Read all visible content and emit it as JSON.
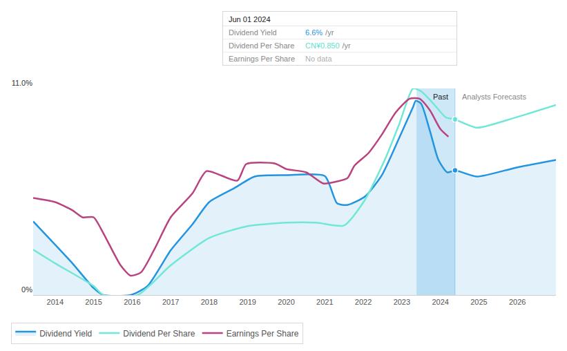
{
  "chart_data": {
    "type": "line",
    "xlim": [
      2013.43,
      2027.0
    ],
    "xticks": [
      2014,
      2015,
      2016,
      2017,
      2018,
      2019,
      2020,
      2021,
      2022,
      2023,
      2024,
      2025,
      2026
    ],
    "ylim": [
      0,
      11
    ],
    "yticks": [
      {
        "value": 0,
        "label": "0%"
      },
      {
        "value": 11,
        "label": "11.0%"
      }
    ],
    "grid": true,
    "legend": "bottom left",
    "highlight_start": 2023.38,
    "forecast_start": 2024.38,
    "annotations": [
      "Past",
      "Analysts Forecasts"
    ],
    "tooltip": {
      "date": "Jun 01 2024",
      "rows": [
        {
          "name": "Dividend Yield",
          "value": "6.6%",
          "unit": "/yr",
          "color": "#2394df"
        },
        {
          "name": "Dividend Per Share",
          "value": "CN¥0.850",
          "unit": "/yr",
          "color": "#5fe0cc"
        },
        {
          "name": "Earnings Per Share",
          "value": "No data",
          "color": "#b0b0b0"
        }
      ]
    },
    "series": [
      {
        "name": "Dividend Yield",
        "color": "#2394df",
        "type": "area",
        "x": [
          2013.43,
          2014,
          2014.45,
          2015,
          2015.25,
          2015.96,
          2016.4,
          2017,
          2017.57,
          2018,
          2018.64,
          2019.18,
          2020,
          2021,
          2021.32,
          2021.59,
          2022.04,
          2022.48,
          2022.93,
          2023.29,
          2023.36,
          2023.5,
          2023.73,
          2023.95,
          2024.18,
          2024.38,
          2024.95,
          2025.96,
          2027.0
        ],
        "values": [
          3.92,
          2.68,
          1.69,
          0.37,
          0,
          0,
          0.48,
          2.38,
          3.78,
          4.95,
          5.68,
          6.31,
          6.38,
          6.34,
          4.88,
          4.8,
          5.24,
          6.38,
          8.36,
          10.01,
          10.34,
          10.19,
          8.73,
          7.19,
          6.53,
          6.64,
          6.31,
          6.78,
          7.19
        ]
      },
      {
        "name": "Dividend Per Share",
        "color": "#71e7d6",
        "type": "line",
        "x": [
          2013.43,
          2014,
          2015,
          2015.25,
          2016.14,
          2017,
          2018,
          2019,
          2020,
          2020.79,
          2021.5,
          2022.04,
          2022.57,
          2022.93,
          2023.29,
          2023.5,
          2023.82,
          2024.14,
          2024.38,
          2024.95,
          2025.96,
          2027.0
        ],
        "values": [
          2.42,
          1.69,
          0.48,
          0,
          0,
          1.58,
          3.04,
          3.67,
          3.85,
          3.85,
          3.7,
          5.06,
          7.26,
          9.09,
          11.0,
          10.85,
          10.19,
          9.46,
          9.35,
          8.91,
          9.46,
          10.12
        ]
      },
      {
        "name": "Earnings Per Share",
        "color": "#b8437f",
        "type": "line",
        "x": [
          2013.43,
          2014,
          2014.45,
          2014.71,
          2015,
          2015.25,
          2015.7,
          2015.96,
          2016.23,
          2016.59,
          2017,
          2017.57,
          2017.93,
          2018.73,
          2018.96,
          2019.71,
          2020,
          2020.52,
          2020.96,
          2021.32,
          2021.59,
          2021.77,
          2022.13,
          2022.48,
          2022.84,
          2023.2,
          2023.46,
          2023.73,
          2024,
          2024.21
        ],
        "values": [
          5.17,
          4.95,
          4.51,
          4.14,
          4.14,
          3.3,
          1.58,
          1.03,
          1.21,
          2.49,
          4.14,
          5.43,
          6.6,
          6.09,
          6.97,
          7.0,
          6.71,
          6.53,
          5.94,
          6.05,
          6.23,
          6.89,
          7.55,
          8.54,
          9.72,
          10.45,
          10.45,
          9.83,
          8.84,
          8.43
        ]
      }
    ]
  }
}
